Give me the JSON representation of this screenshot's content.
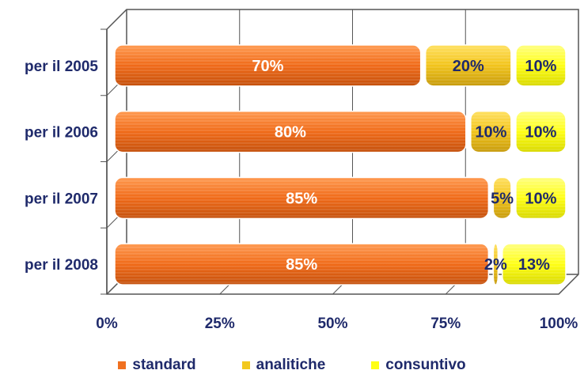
{
  "colors": {
    "standard": "#f07020",
    "analitiche": "#f2c81e",
    "consuntivo": "#ffff14",
    "axis_text": "#1f2a6b",
    "bar_label_light": "#ffffff",
    "bar_label_dark": "#1f2a6b",
    "grid": "#555555"
  },
  "chart_data": {
    "type": "bar",
    "orientation": "horizontal",
    "stacked": true,
    "three_d": true,
    "categories": [
      "per il 2005",
      "per il 2006",
      "per il 2007",
      "per il 2008"
    ],
    "series": [
      {
        "name": "standard",
        "values": [
          70,
          80,
          85,
          85
        ],
        "labels": [
          "70%",
          "80%",
          "85%",
          "85%"
        ]
      },
      {
        "name": "analitiche",
        "values": [
          20,
          10,
          5,
          2
        ],
        "labels": [
          "20%",
          "10%",
          "5%",
          "2%"
        ]
      },
      {
        "name": "consuntivo",
        "values": [
          10,
          10,
          10,
          13
        ],
        "labels": [
          "10%",
          "10%",
          "10%",
          "13%"
        ]
      }
    ],
    "x_ticks": [
      "0%",
      "25%",
      "50%",
      "75%",
      "100%"
    ],
    "xlim": [
      0,
      100
    ],
    "grid": true,
    "legend_position": "bottom"
  }
}
